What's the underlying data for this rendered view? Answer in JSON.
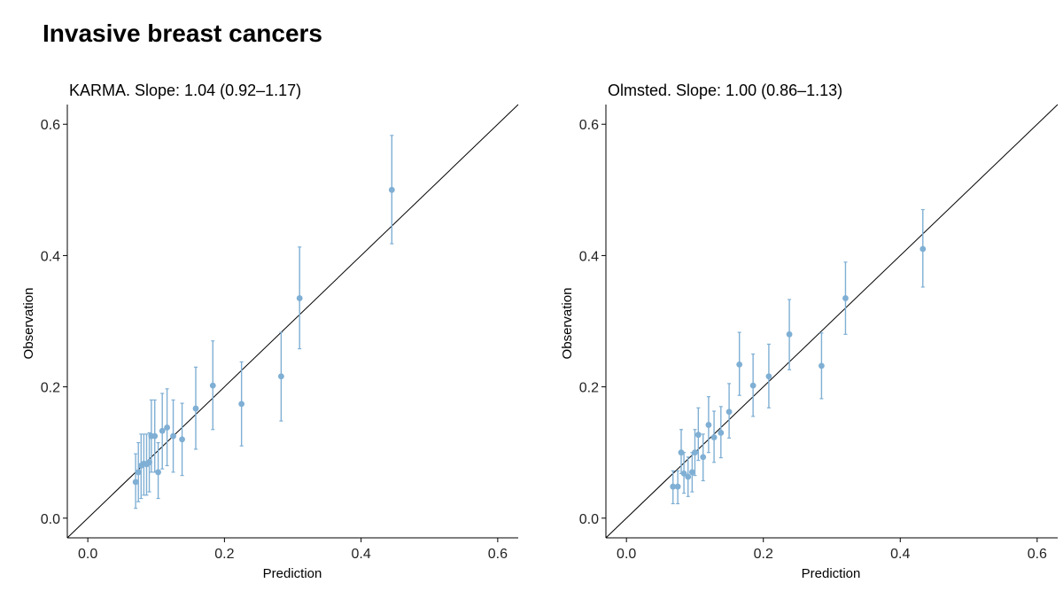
{
  "page": {
    "title": "Invasive breast cancers"
  },
  "style": {
    "point_color": "#7fafd4",
    "line_color": "#000000"
  },
  "chart_data": [
    {
      "type": "scatter",
      "title": "KARMA.  Slope: 1.04 (0.92–1.17)",
      "xlabel": "Prediction",
      "ylabel": "Observation",
      "xlim": [
        -0.03,
        0.63
      ],
      "ylim": [
        -0.03,
        0.63
      ],
      "xticks": [
        "0.0",
        "0.2",
        "0.4",
        "0.6"
      ],
      "yticks": [
        "0.0",
        "0.2",
        "0.4",
        "0.6"
      ],
      "reference_line": "y = x",
      "points": [
        {
          "x": 0.07,
          "y": 0.055,
          "lo": 0.015,
          "hi": 0.098
        },
        {
          "x": 0.074,
          "y": 0.07,
          "lo": 0.025,
          "hi": 0.115
        },
        {
          "x": 0.078,
          "y": 0.08,
          "lo": 0.03,
          "hi": 0.128
        },
        {
          "x": 0.082,
          "y": 0.083,
          "lo": 0.035,
          "hi": 0.128
        },
        {
          "x": 0.086,
          "y": 0.082,
          "lo": 0.035,
          "hi": 0.128
        },
        {
          "x": 0.09,
          "y": 0.085,
          "lo": 0.04,
          "hi": 0.13
        },
        {
          "x": 0.093,
          "y": 0.125,
          "lo": 0.07,
          "hi": 0.18
        },
        {
          "x": 0.098,
          "y": 0.125,
          "lo": 0.07,
          "hi": 0.18
        },
        {
          "x": 0.103,
          "y": 0.07,
          "lo": 0.03,
          "hi": 0.115
        },
        {
          "x": 0.109,
          "y": 0.133,
          "lo": 0.075,
          "hi": 0.19
        },
        {
          "x": 0.116,
          "y": 0.138,
          "lo": 0.08,
          "hi": 0.197
        },
        {
          "x": 0.125,
          "y": 0.125,
          "lo": 0.07,
          "hi": 0.18
        },
        {
          "x": 0.138,
          "y": 0.12,
          "lo": 0.065,
          "hi": 0.175
        },
        {
          "x": 0.158,
          "y": 0.167,
          "lo": 0.105,
          "hi": 0.23
        },
        {
          "x": 0.183,
          "y": 0.202,
          "lo": 0.135,
          "hi": 0.27
        },
        {
          "x": 0.225,
          "y": 0.174,
          "lo": 0.11,
          "hi": 0.238
        },
        {
          "x": 0.283,
          "y": 0.216,
          "lo": 0.148,
          "hi": 0.283
        },
        {
          "x": 0.31,
          "y": 0.335,
          "lo": 0.258,
          "hi": 0.413
        },
        {
          "x": 0.445,
          "y": 0.5,
          "lo": 0.418,
          "hi": 0.583
        }
      ]
    },
    {
      "type": "scatter",
      "title": "Olmsted. Slope: 1.00 (0.86–1.13)",
      "xlabel": "Prediction",
      "ylabel": "Observation",
      "xlim": [
        -0.03,
        0.63
      ],
      "ylim": [
        -0.03,
        0.63
      ],
      "xticks": [
        "0.0",
        "0.2",
        "0.4",
        "0.6"
      ],
      "yticks": [
        "0.0",
        "0.2",
        "0.4",
        "0.6"
      ],
      "reference_line": "y = x",
      "points": [
        {
          "x": 0.068,
          "y": 0.048,
          "lo": 0.022,
          "hi": 0.072
        },
        {
          "x": 0.075,
          "y": 0.048,
          "lo": 0.022,
          "hi": 0.072
        },
        {
          "x": 0.08,
          "y": 0.1,
          "lo": 0.068,
          "hi": 0.135
        },
        {
          "x": 0.084,
          "y": 0.068,
          "lo": 0.038,
          "hi": 0.1
        },
        {
          "x": 0.09,
          "y": 0.063,
          "lo": 0.033,
          "hi": 0.093
        },
        {
          "x": 0.096,
          "y": 0.07,
          "lo": 0.04,
          "hi": 0.1
        },
        {
          "x": 0.1,
          "y": 0.1,
          "lo": 0.065,
          "hi": 0.135
        },
        {
          "x": 0.105,
          "y": 0.127,
          "lo": 0.088,
          "hi": 0.168
        },
        {
          "x": 0.112,
          "y": 0.093,
          "lo": 0.057,
          "hi": 0.128
        },
        {
          "x": 0.12,
          "y": 0.142,
          "lo": 0.1,
          "hi": 0.185
        },
        {
          "x": 0.128,
          "y": 0.123,
          "lo": 0.085,
          "hi": 0.163
        },
        {
          "x": 0.138,
          "y": 0.13,
          "lo": 0.092,
          "hi": 0.17
        },
        {
          "x": 0.15,
          "y": 0.162,
          "lo": 0.122,
          "hi": 0.205
        },
        {
          "x": 0.165,
          "y": 0.234,
          "lo": 0.187,
          "hi": 0.283
        },
        {
          "x": 0.185,
          "y": 0.202,
          "lo": 0.155,
          "hi": 0.25
        },
        {
          "x": 0.208,
          "y": 0.216,
          "lo": 0.168,
          "hi": 0.265
        },
        {
          "x": 0.238,
          "y": 0.28,
          "lo": 0.226,
          "hi": 0.333
        },
        {
          "x": 0.285,
          "y": 0.232,
          "lo": 0.182,
          "hi": 0.282
        },
        {
          "x": 0.32,
          "y": 0.335,
          "lo": 0.28,
          "hi": 0.39
        },
        {
          "x": 0.433,
          "y": 0.41,
          "lo": 0.352,
          "hi": 0.47
        }
      ]
    }
  ]
}
